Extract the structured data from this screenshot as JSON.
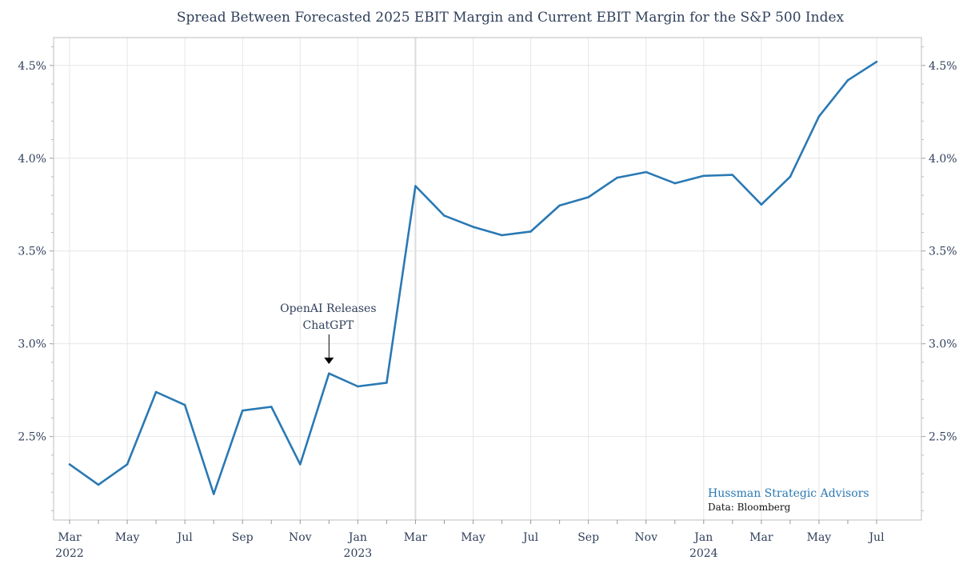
{
  "chart_data": {
    "type": "line",
    "title": "Spread Between Forecasted 2025 EBIT Margin and Current EBIT Margin for the S&P 500 Index",
    "xlabel": "",
    "ylabel": "",
    "x": [
      "2022-03",
      "2022-04",
      "2022-05",
      "2022-06",
      "2022-07",
      "2022-08",
      "2022-09",
      "2022-10",
      "2022-11",
      "2022-12",
      "2023-01",
      "2023-02",
      "2023-03",
      "2023-04",
      "2023-05",
      "2023-06",
      "2023-07",
      "2023-08",
      "2023-09",
      "2023-10",
      "2023-11",
      "2023-12",
      "2024-01",
      "2024-02",
      "2024-03",
      "2024-04",
      "2024-05",
      "2024-06",
      "2024-07"
    ],
    "series": [
      {
        "values": [
          2.35,
          2.24,
          2.35,
          2.74,
          2.67,
          2.19,
          2.64,
          2.66,
          2.35,
          2.84,
          2.77,
          2.79,
          3.85,
          3.69,
          3.63,
          3.585,
          3.605,
          3.745,
          3.79,
          3.895,
          3.925,
          3.865,
          3.905,
          3.91,
          3.75,
          3.9,
          4.225,
          4.42,
          4.52
        ],
        "color": "#2a79b4"
      }
    ],
    "ylim": [
      2.05,
      4.65
    ],
    "y_ticks": [
      2.5,
      3.0,
      3.5,
      4.0,
      4.5
    ],
    "y_tick_labels": [
      "2.5%",
      "3.0%",
      "3.5%",
      "4.0%",
      "4.5%"
    ],
    "x_tick_labels": [
      "Mar",
      "May",
      "Jul",
      "Sep",
      "Nov",
      "Jan",
      "Mar",
      "May",
      "Jul",
      "Sep",
      "Nov",
      "Jan",
      "Mar",
      "May",
      "Jul"
    ],
    "x_tick_positions": [
      "2022-03",
      "2022-05",
      "2022-07",
      "2022-09",
      "2022-11",
      "2023-01",
      "2023-03",
      "2023-05",
      "2023-07",
      "2023-09",
      "2023-11",
      "2024-01",
      "2024-03",
      "2024-05",
      "2024-07"
    ],
    "year_labels": [
      {
        "x": "2022-03",
        "label": "2022"
      },
      {
        "x": "2023-01",
        "label": "2023"
      },
      {
        "x": "2024-01",
        "label": "2024"
      }
    ],
    "grid": true,
    "annotation": {
      "x": "2022-12",
      "lines": [
        "OpenAI Releases",
        "ChatGPT"
      ]
    },
    "brand": "Hussman Strategic Advisors",
    "source": "Data: Bloomberg"
  }
}
